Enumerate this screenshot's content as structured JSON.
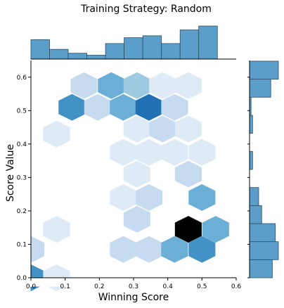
{
  "chart_data": {
    "type": "hexbin-jointplot",
    "title": "Training Strategy: Random",
    "xlabel": "Winning Score",
    "ylabel": "Score Value",
    "xlim": [
      0.0,
      0.6
    ],
    "ylim": [
      0.0,
      0.65
    ],
    "x_ticks": [
      "0.0",
      "0.1",
      "0.2",
      "0.3",
      "0.4",
      "0.5",
      "0.6"
    ],
    "y_ticks": [
      "0.0",
      "0.1",
      "0.2",
      "0.3",
      "0.4",
      "0.5",
      "0.6"
    ],
    "grid": false,
    "hexbins": [
      {
        "x": 0.0,
        "y": 0.0,
        "count": 6
      },
      {
        "x": 0.075,
        "y": 0.0,
        "count": 1
      },
      {
        "x": 0.0,
        "y": 0.085,
        "count": 2
      },
      {
        "x": 0.075,
        "y": 0.145,
        "count": 1
      },
      {
        "x": 0.075,
        "y": 0.43,
        "count": 1
      },
      {
        "x": 0.12,
        "y": 0.51,
        "count": 6
      },
      {
        "x": 0.195,
        "y": 0.51,
        "count": 2
      },
      {
        "x": 0.155,
        "y": 0.575,
        "count": 3
      },
      {
        "x": 0.235,
        "y": 0.575,
        "count": 5
      },
      {
        "x": 0.31,
        "y": 0.575,
        "count": 4
      },
      {
        "x": 0.385,
        "y": 0.575,
        "count": 1
      },
      {
        "x": 0.46,
        "y": 0.575,
        "count": 1
      },
      {
        "x": 0.27,
        "y": 0.51,
        "count": 5
      },
      {
        "x": 0.345,
        "y": 0.51,
        "count": 8
      },
      {
        "x": 0.42,
        "y": 0.51,
        "count": 2
      },
      {
        "x": 0.31,
        "y": 0.445,
        "count": 1
      },
      {
        "x": 0.385,
        "y": 0.445,
        "count": 2
      },
      {
        "x": 0.46,
        "y": 0.445,
        "count": 1
      },
      {
        "x": 0.27,
        "y": 0.375,
        "count": 1
      },
      {
        "x": 0.345,
        "y": 0.375,
        "count": 1
      },
      {
        "x": 0.42,
        "y": 0.375,
        "count": 1
      },
      {
        "x": 0.5,
        "y": 0.375,
        "count": 1
      },
      {
        "x": 0.31,
        "y": 0.31,
        "count": 1
      },
      {
        "x": 0.46,
        "y": 0.31,
        "count": 3
      },
      {
        "x": 0.27,
        "y": 0.24,
        "count": 1
      },
      {
        "x": 0.345,
        "y": 0.24,
        "count": 2
      },
      {
        "x": 0.5,
        "y": 0.24,
        "count": 5
      },
      {
        "x": 0.31,
        "y": 0.175,
        "count": 3
      },
      {
        "x": 0.46,
        "y": 0.145,
        "count": 12
      },
      {
        "x": 0.54,
        "y": 0.145,
        "count": 5
      },
      {
        "x": 0.27,
        "y": 0.085,
        "count": 2
      },
      {
        "x": 0.345,
        "y": 0.085,
        "count": 3
      },
      {
        "x": 0.42,
        "y": 0.085,
        "count": 5
      },
      {
        "x": 0.5,
        "y": 0.085,
        "count": 7
      }
    ],
    "max_count": 12,
    "top_histogram": {
      "bin_edges": [
        0.0,
        0.0545,
        0.109,
        0.1635,
        0.218,
        0.2725,
        0.327,
        0.3815,
        0.436,
        0.4905,
        0.545
      ],
      "counts": [
        10,
        5,
        3,
        2,
        8,
        11,
        12,
        8,
        15,
        17
      ]
    },
    "right_histogram": {
      "bin_edges": [
        0.0,
        0.054,
        0.108,
        0.162,
        0.216,
        0.27,
        0.324,
        0.378,
        0.432,
        0.486,
        0.54,
        0.594,
        0.648
      ],
      "counts": [
        15,
        19,
        17,
        8,
        6,
        0,
        2,
        0,
        2,
        1,
        14,
        19
      ]
    },
    "colormap": [
      "#f7fbff",
      "#deebf7",
      "#c6dbef",
      "#9ecae1",
      "#6baed6",
      "#4292c6",
      "#2171b5",
      "#08519c",
      "#08306b",
      "#000000"
    ],
    "bar_color": "#5a9ec9",
    "bar_edge_color": "#2f4f67"
  }
}
